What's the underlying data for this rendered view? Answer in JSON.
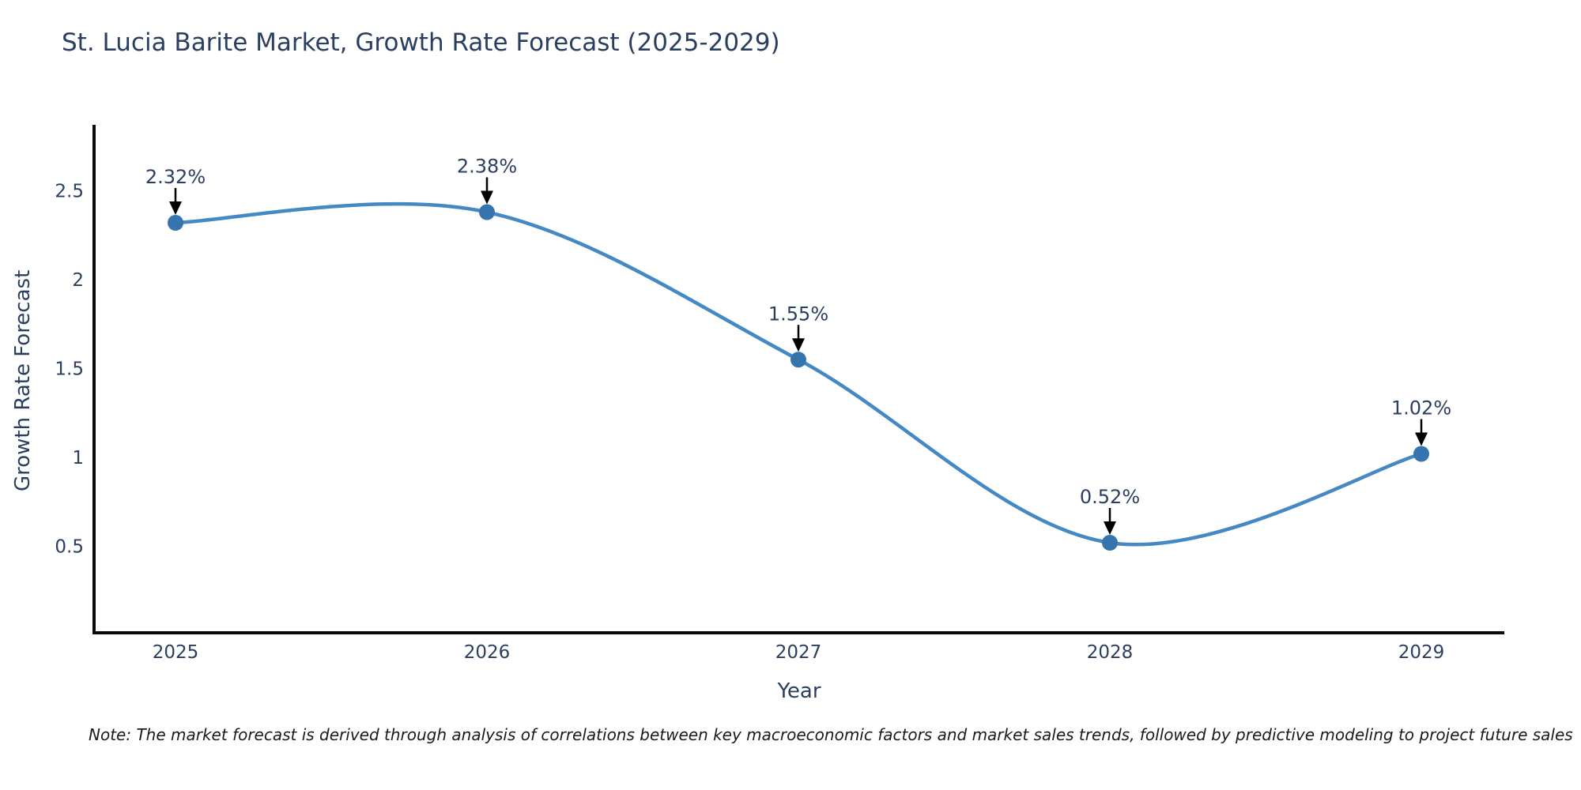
{
  "title": "St. Lucia Barite Market, Growth Rate Forecast (2025-2029)",
  "note": "Note: The market forecast is derived through analysis of correlations between key macroeconomic factors and market sales trends, followed by predictive modeling to project future sales",
  "chart_data": {
    "type": "line",
    "title": "St. Lucia Barite Market, Growth Rate Forecast (2025-2029)",
    "xlabel": "Year",
    "ylabel": "Growth Rate Forecast",
    "categories": [
      "2025",
      "2026",
      "2027",
      "2028",
      "2029"
    ],
    "values": [
      2.32,
      2.38,
      1.55,
      0.52,
      1.02
    ],
    "point_labels": [
      "2.32%",
      "2.38%",
      "1.55%",
      "0.52%",
      "1.02%"
    ],
    "series": [
      {
        "name": "Growth Rate Forecast",
        "values": [
          2.32,
          2.38,
          1.55,
          0.52,
          1.02
        ]
      }
    ],
    "y_ticks": [
      0.5,
      1,
      1.5,
      2,
      2.5
    ],
    "ylim": [
      0,
      2.87
    ],
    "line_shape": "spline",
    "grid": false,
    "legend": false,
    "annotations": "black down arrows from labels to points",
    "colors": {
      "line": "#4488c4",
      "marker": "#3674ae",
      "axis": "#0a0a0a",
      "text": "#2a3f5f",
      "arrow": "#000000",
      "background": "#ffffff"
    }
  }
}
